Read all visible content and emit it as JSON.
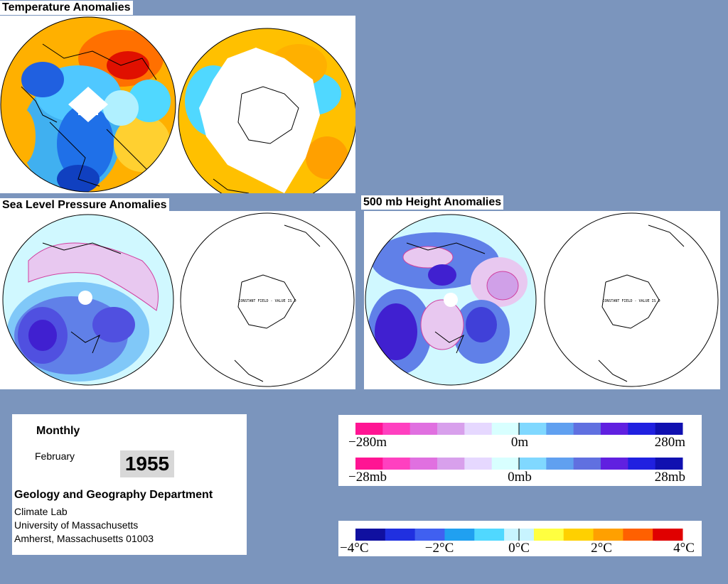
{
  "titles": {
    "temperature": "Temperature Anomalies",
    "slp": "Sea Level Pressure Anomalies",
    "height500": "500 mb Height Anomalies"
  },
  "map_notes": {
    "slp_south": "CONSTANT FIELD - VALUE IS 0",
    "height_south": "CONSTANT FIELD - VALUE IS 0"
  },
  "info": {
    "period": "Monthly",
    "month": "February",
    "year": "1955",
    "department": "Geology and Geography Department",
    "lab": "Climate Lab",
    "university": "University of Massachusetts",
    "address": "Amherst, Massachusetts 01003"
  },
  "legends": {
    "height": {
      "labels": [
        "−280m",
        "0m",
        "280m"
      ]
    },
    "pressure": {
      "labels": [
        "−28mb",
        "0mb",
        "28mb"
      ]
    },
    "temperature": {
      "labels": [
        "−4°C",
        "−2°C",
        "0°C",
        "2°C",
        "4°C"
      ]
    }
  },
  "colors": {
    "background": "#7b95bd",
    "blue_scale": [
      "#1010a0",
      "#2030e0",
      "#4060f0",
      "#20a0f0",
      "#50d8ff",
      "#c8f4ff"
    ],
    "red_scale": [
      "#ffff40",
      "#ffd000",
      "#ffa000",
      "#ff6000",
      "#e00000"
    ],
    "pressure_scale": [
      "#ff1493",
      "#ff40c0",
      "#e070e0",
      "#d8a0ec",
      "#e6d8ff",
      "#d8ffff",
      "#80d8ff",
      "#60a0f0",
      "#6070e0",
      "#6020e0",
      "#2020e0",
      "#1010b0"
    ]
  }
}
